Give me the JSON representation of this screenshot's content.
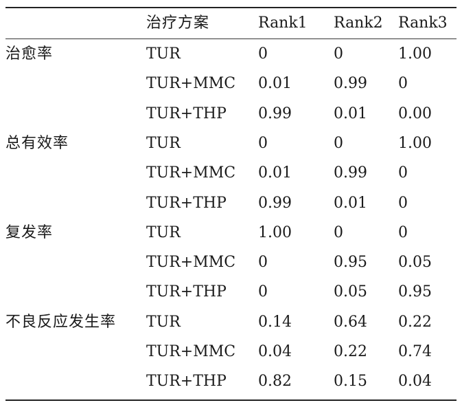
{
  "table": {
    "headers": {
      "indicator": "",
      "treatment": "治疗方案",
      "rank1": "Rank1",
      "rank2": "Rank2",
      "rank3": "Rank3"
    },
    "groups": [
      {
        "indicator": "治愈率",
        "rows": [
          {
            "treatment": "TUR",
            "rank1": "0",
            "rank2": "0",
            "rank3": "1.00"
          },
          {
            "treatment": "TUR+MMC",
            "rank1": "0.01",
            "rank2": "0.99",
            "rank3": "0"
          },
          {
            "treatment": "TUR+THP",
            "rank1": "0.99",
            "rank2": "0.01",
            "rank3": "0.00"
          }
        ]
      },
      {
        "indicator": "总有效率",
        "rows": [
          {
            "treatment": "TUR",
            "rank1": "0",
            "rank2": "0",
            "rank3": "1.00"
          },
          {
            "treatment": "TUR+MMC",
            "rank1": "0.01",
            "rank2": "0.99",
            "rank3": "0"
          },
          {
            "treatment": "TUR+THP",
            "rank1": "0.99",
            "rank2": "0.01",
            "rank3": "0"
          }
        ]
      },
      {
        "indicator": "复发率",
        "rows": [
          {
            "treatment": "TUR",
            "rank1": "1.00",
            "rank2": "0",
            "rank3": "0"
          },
          {
            "treatment": "TUR+MMC",
            "rank1": "0",
            "rank2": "0.95",
            "rank3": "0.05"
          },
          {
            "treatment": "TUR+THP",
            "rank1": "0",
            "rank2": "0.05",
            "rank3": "0.95"
          }
        ]
      },
      {
        "indicator": "不良反应发生率",
        "rows": [
          {
            "treatment": "TUR",
            "rank1": "0.14",
            "rank2": "0.64",
            "rank3": "0.22"
          },
          {
            "treatment": "TUR+MMC",
            "rank1": "0.04",
            "rank2": "0.22",
            "rank3": "0.74"
          },
          {
            "treatment": "TUR+THP",
            "rank1": "0.82",
            "rank2": "0.15",
            "rank3": "0.04"
          }
        ]
      }
    ]
  }
}
